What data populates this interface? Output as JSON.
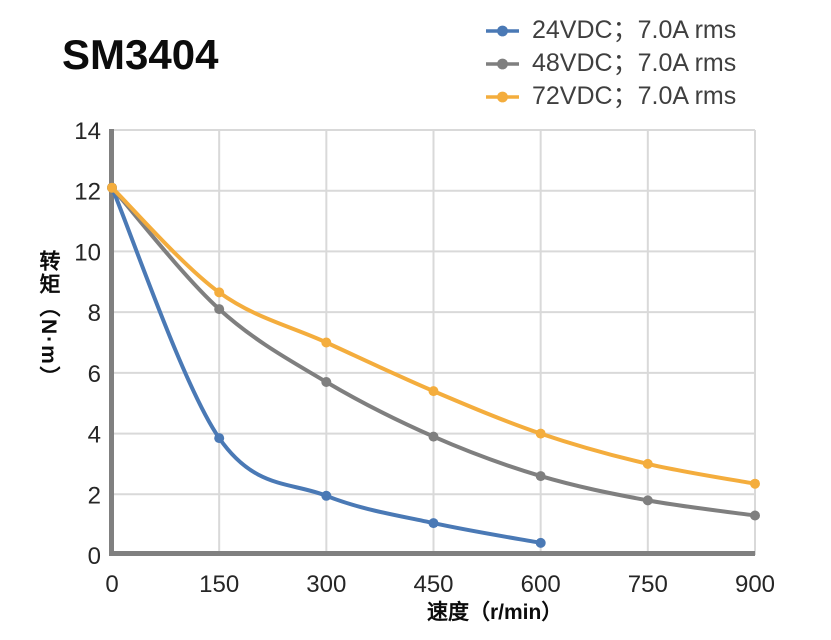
{
  "colors": {
    "blue": "#4A79B5",
    "gray": "#7F7F7F",
    "orange": "#F4AD3D",
    "grid": "#D9D9D9",
    "axis": "#808080",
    "tick_text": "#262626",
    "legend_text": "#3F3F3F",
    "title_text": "#0C0C0C"
  },
  "chart_data": {
    "type": "line",
    "title": "SM3404",
    "xlabel": "速度（r/min）",
    "ylabel": "转矩（N·m）",
    "xlim": [
      0,
      900
    ],
    "ylim": [
      0,
      14
    ],
    "x_ticks": [
      0,
      150,
      300,
      450,
      600,
      750,
      900
    ],
    "y_ticks": [
      0,
      2,
      4,
      6,
      8,
      10,
      12,
      14
    ],
    "grid": true,
    "legend_position": "top-right",
    "series": [
      {
        "name": "24VDC；7.0A rms",
        "color": "#4A79B5",
        "x": [
          0,
          150,
          300,
          450,
          600
        ],
        "values": [
          12.1,
          3.85,
          1.95,
          1.05,
          0.4
        ]
      },
      {
        "name": "48VDC；7.0A rms",
        "color": "#7F7F7F",
        "x": [
          0,
          150,
          300,
          450,
          600,
          750,
          900
        ],
        "values": [
          12.1,
          8.1,
          5.7,
          3.9,
          2.6,
          1.8,
          1.3
        ]
      },
      {
        "name": "72VDC；7.0A rms",
        "color": "#F4AD3D",
        "x": [
          0,
          150,
          300,
          450,
          600,
          750,
          900
        ],
        "values": [
          12.1,
          8.65,
          7.0,
          5.4,
          4.0,
          3.0,
          2.35
        ]
      }
    ]
  }
}
